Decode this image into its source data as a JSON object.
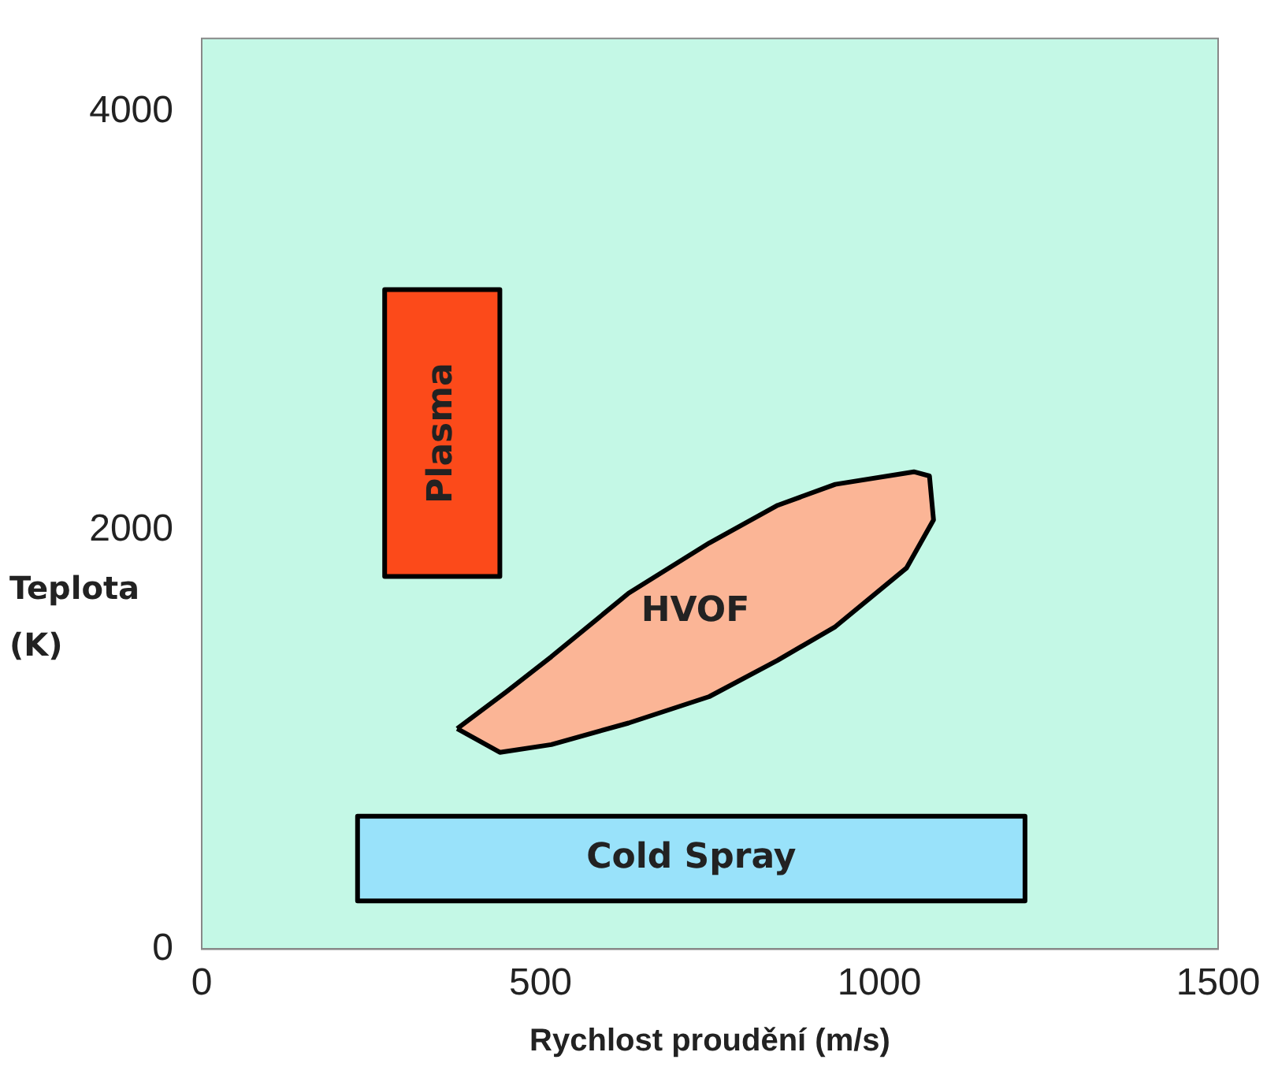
{
  "chart_data": {
    "type": "area",
    "xlabel": "Rychlost proudění (m/s)",
    "ylabel": "Teplota (K)",
    "xlim": [
      0,
      1500
    ],
    "ylim": [
      0,
      4350
    ],
    "xticks": [
      0,
      500,
      1000,
      1500
    ],
    "yticks": [
      0,
      2000,
      4000
    ],
    "series": [
      {
        "name": "Plasma",
        "color": "#fc4a1a",
        "x": [
          270,
          440,
          440,
          270,
          270
        ],
        "values": [
          1780,
          1780,
          3150,
          3150,
          1780
        ]
      },
      {
        "name": "HVOF",
        "color": "#fbb596",
        "x": [
          377,
          450,
          516,
          630,
          749,
          850,
          935,
          1051,
          1074,
          1080,
          1040,
          935,
          850,
          749,
          630,
          516,
          440,
          377
        ],
        "values": [
          1053,
          1230,
          1397,
          1700,
          1940,
          2120,
          2220,
          2280,
          2260,
          2050,
          1820,
          1540,
          1380,
          1206,
          1080,
          977,
          940,
          1053
        ]
      },
      {
        "name": "Cold Spray",
        "color": "#99e2fa",
        "x": [
          230,
          1215,
          1215,
          230,
          230
        ],
        "values": [
          230,
          230,
          635,
          635,
          230
        ]
      }
    ]
  }
}
